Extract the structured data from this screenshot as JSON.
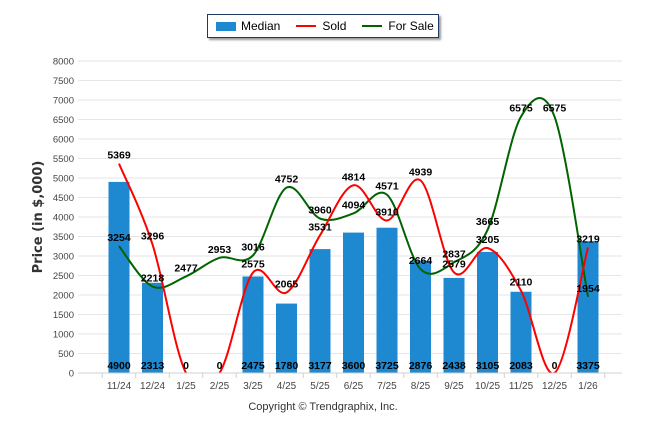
{
  "chart_data": {
    "type": "bar",
    "title": "",
    "xlabel": "",
    "ylabel": "Price (in $,000)",
    "ylim": [
      0,
      8000
    ],
    "yticks": [
      0,
      500,
      1000,
      1500,
      2000,
      2500,
      3000,
      3500,
      4000,
      4500,
      5000,
      5500,
      6000,
      6500,
      7000,
      7500,
      8000
    ],
    "grid": true,
    "legend_position": "top-center",
    "categories": [
      "11/24",
      "12/24",
      "1/25",
      "2/25",
      "3/25",
      "4/25",
      "5/25",
      "6/25",
      "7/25",
      "8/25",
      "9/25",
      "10/25",
      "11/25",
      "12/25",
      "1/26"
    ],
    "series": [
      {
        "name": "Median",
        "kind": "bar",
        "color": "#1e88d0",
        "values": [
          4900,
          2313,
          0,
          0,
          2475,
          1780,
          3177,
          3600,
          3725,
          2876,
          2438,
          3105,
          2083,
          0,
          3375
        ]
      },
      {
        "name": "Sold",
        "kind": "line",
        "color": "#ff0000",
        "values": [
          5369,
          3296,
          0,
          0,
          2575,
          2065,
          3531,
          4814,
          3910,
          4939,
          2579,
          3205,
          2110,
          0,
          3219
        ]
      },
      {
        "name": "For Sale",
        "kind": "line",
        "color": "#006400",
        "values": [
          3254,
          2218,
          2477,
          2953,
          3016,
          4752,
          3960,
          4094,
          4571,
          2664,
          2837,
          3665,
          6575,
          6575,
          1954
        ]
      }
    ],
    "annotation": "Copyright © Trendgraphix, Inc."
  }
}
